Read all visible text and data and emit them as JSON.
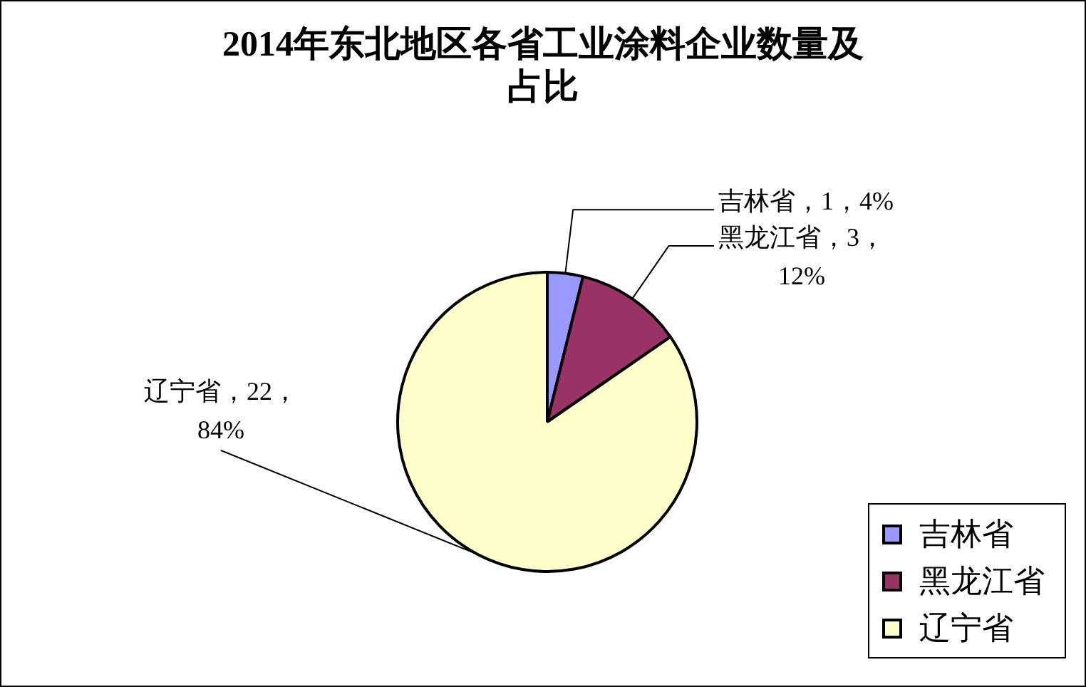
{
  "chart_data": {
    "type": "pie",
    "title": "2014年东北地区各省工业涂料企业数量及占比",
    "categories": [
      "吉林省",
      "黑龙江省",
      "辽宁省"
    ],
    "values": [
      1,
      3,
      22
    ],
    "colors": [
      "#9999ff",
      "#993366",
      "#ffffcc"
    ],
    "value_labels": [
      "吉林省，1，4%",
      "黑龙江省，3，12%",
      "辽宁省，22，84%"
    ],
    "legend": "bottom right"
  }
}
